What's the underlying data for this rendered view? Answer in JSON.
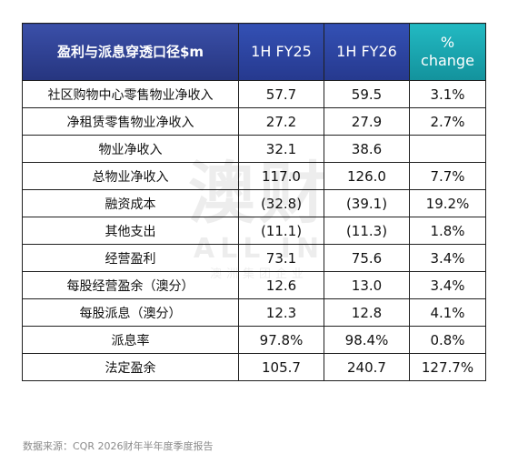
{
  "table": {
    "headers": {
      "metric": "盈利与派息穿透口径$m",
      "h1fy25": "1H FY25",
      "h1fy26": "1H FY26",
      "change_line1": "%",
      "change_line2": "change"
    },
    "rows": [
      {
        "metric": "社区购物中心零售物业净收入",
        "h1fy25": "57.7",
        "h1fy26": "59.5",
        "change": "3.1%"
      },
      {
        "metric": "净租赁零售物业净收入",
        "h1fy25": "27.2",
        "h1fy26": "27.9",
        "change": "2.7%"
      },
      {
        "metric": "物业净收入",
        "h1fy25": "32.1",
        "h1fy26": "38.6",
        "change": ""
      },
      {
        "metric": "总物业净收入",
        "h1fy25": "117.0",
        "h1fy26": "126.0",
        "change": "7.7%"
      },
      {
        "metric": "融资成本",
        "h1fy25": "(32.8)",
        "h1fy26": "(39.1)",
        "change": "19.2%"
      },
      {
        "metric": "其他支出",
        "h1fy25": "(11.1)",
        "h1fy26": "(11.3)",
        "change": "1.8%"
      },
      {
        "metric": "经营盈利",
        "h1fy25": "73.1",
        "h1fy26": "75.6",
        "change": "3.4%"
      },
      {
        "metric": "每股经营盈余（澳分）",
        "h1fy25": "12.6",
        "h1fy26": "13.0",
        "change": "3.4%"
      },
      {
        "metric": "每股派息（澳分）",
        "h1fy25": "12.3",
        "h1fy26": "12.8",
        "change": "4.1%"
      },
      {
        "metric": "派息率",
        "h1fy25": "97.8%",
        "h1fy26": "98.4%",
        "change": "0.8%"
      },
      {
        "metric": "法定盈余",
        "h1fy25": "105.7",
        "h1fy26": "240.7",
        "change": "127.7%"
      }
    ]
  },
  "watermark": {
    "big": "澳财",
    "mid": "ALL IN",
    "small": "澳洲集团企业"
  },
  "source": "数据来源：CQR 2026财年半年度季度报告",
  "colors": {
    "header_navy": "#2e3f8f",
    "header_blue": "#2f47a8",
    "header_teal": "#1aa9b3",
    "border": "#1f1f1f"
  }
}
